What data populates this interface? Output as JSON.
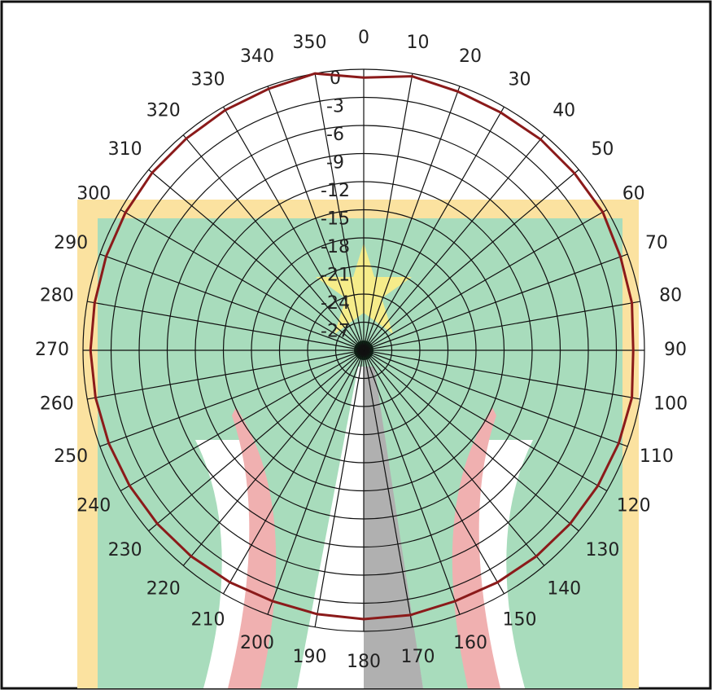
{
  "chart_data": {
    "type": "polar",
    "theta": [
      0,
      10,
      20,
      30,
      40,
      50,
      60,
      70,
      80,
      90,
      100,
      110,
      120,
      130,
      140,
      150,
      160,
      170,
      180,
      190,
      200,
      210,
      220,
      230,
      240,
      250,
      260,
      270,
      280,
      290,
      300,
      310,
      320,
      330,
      340,
      350
    ],
    "values": [
      -0.9,
      -0.3,
      -0.6,
      -0.7,
      -0.6,
      -0.6,
      -0.5,
      -0.8,
      -0.9,
      -1.2,
      -0.9,
      -1.0,
      -1.1,
      -1.2,
      -1.3,
      -1.4,
      -1.5,
      -1.3,
      -1.3,
      -1.4,
      -1.5,
      -1.4,
      -1.3,
      -1.2,
      -1.1,
      -1.0,
      -0.9,
      -0.8,
      -0.8,
      -0.7,
      -0.6,
      -0.5,
      -0.5,
      -0.4,
      -0.3,
      0
    ],
    "color": "#8b1a1a",
    "thetaticks": [
      0,
      10,
      20,
      30,
      40,
      50,
      60,
      70,
      80,
      90,
      100,
      110,
      120,
      130,
      140,
      150,
      160,
      170,
      180,
      190,
      200,
      210,
      220,
      230,
      240,
      250,
      260,
      270,
      280,
      290,
      300,
      310,
      320,
      330,
      340,
      350
    ],
    "rlim": [
      -30,
      0
    ],
    "rticks": [
      0,
      -3,
      -6,
      -9,
      -12,
      -15,
      -18,
      -21,
      -24,
      -27
    ],
    "grid": true
  }
}
